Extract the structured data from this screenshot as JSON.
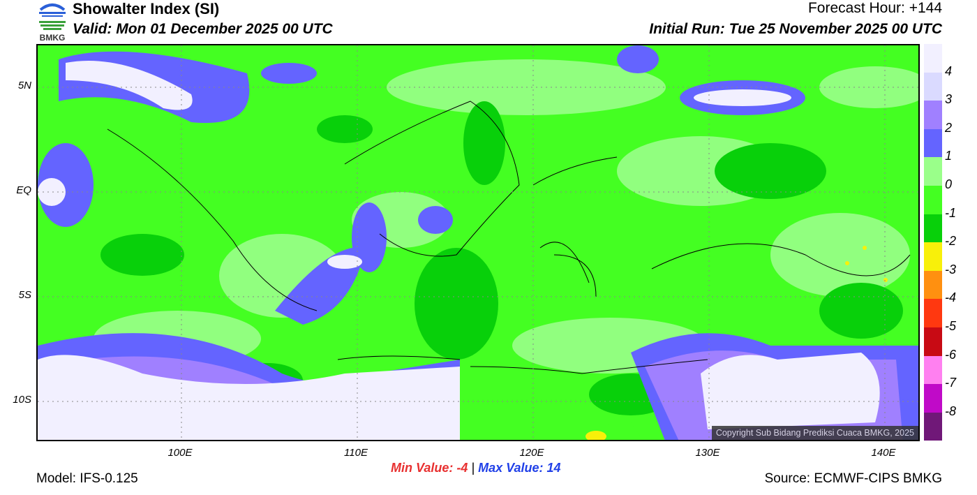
{
  "header": {
    "title": "Showalter Index (SI)",
    "valid": "Valid: Mon 01 December 2025 00 UTC",
    "forecast_hour": "Forecast Hour: +144",
    "initial_run": "Initial Run: Tue 25 November 2025 00 UTC",
    "logo_text": "BMKG"
  },
  "axes": {
    "lat_labels": [
      "5N",
      "EQ",
      "5S",
      "10S"
    ],
    "lon_labels": [
      "100E",
      "110E",
      "120E",
      "130E",
      "140E"
    ]
  },
  "legend": {
    "labels": [
      "4",
      "3",
      "2",
      "1",
      "0",
      "-1",
      "-2",
      "-3",
      "-4",
      "-5",
      "-6",
      "-7",
      "-8"
    ],
    "colors": [
      "#f2f0ff",
      "#dadaff",
      "#a080ff",
      "#6464ff",
      "#9aff8a",
      "#44ff22",
      "#08d00a",
      "#f8f00a",
      "#ff9010",
      "#ff3810",
      "#c80a14",
      "#ff80f0",
      "#c00ac8",
      "#701878"
    ]
  },
  "copyright": "Copyright Sub Bidang Prediksi Cuaca BMKG, 2025",
  "stats": {
    "min_label": "Min Value:",
    "min_value": "-4",
    "separator": "|",
    "max_label": "Max Value:",
    "max_value": "14"
  },
  "footer": {
    "model": "Model: IFS-0.125",
    "source": "Source: ECMWF-CIPS BMKG"
  }
}
